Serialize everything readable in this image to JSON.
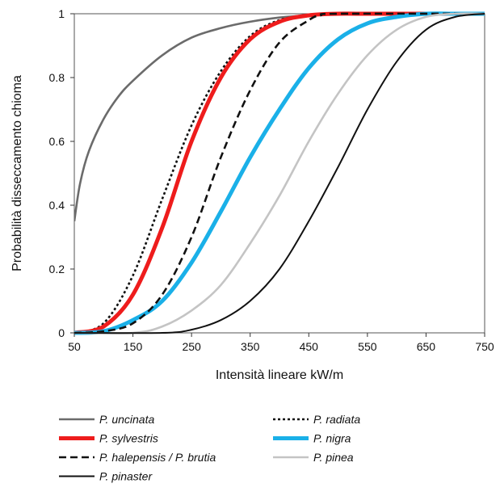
{
  "chart_data": {
    "type": "line",
    "title": "",
    "xlabel": "Intensità lineare kW/m",
    "ylabel": "Probabilità disseccamento chioma",
    "xlim": [
      50,
      750
    ],
    "ylim": [
      0,
      1
    ],
    "x_ticks": [
      "50",
      "150",
      "250",
      "350",
      "450",
      "550",
      "650",
      "750"
    ],
    "y_ticks": [
      "0",
      "0.2",
      "0.4",
      "0.6",
      "0.8",
      "1"
    ],
    "grid": false,
    "legend_position": "bottom",
    "series": [
      {
        "name": "P. uncinata",
        "color": "#6b6b6b",
        "dash": "solid",
        "width": "medium",
        "x": [
          50,
          60,
          75,
          100,
          125,
          150,
          200,
          250,
          300,
          350,
          400,
          450,
          500,
          600,
          750
        ],
        "y": [
          0.35,
          0.47,
          0.57,
          0.67,
          0.74,
          0.79,
          0.87,
          0.925,
          0.955,
          0.975,
          0.988,
          0.995,
          0.998,
          1.0,
          1.0
        ]
      },
      {
        "name": "P. radiata",
        "color": "#111111",
        "dash": "dotted",
        "width": "medium",
        "x": [
          50,
          100,
          150,
          200,
          250,
          300,
          350,
          400,
          450,
          470,
          500,
          550,
          750
        ],
        "y": [
          0.0,
          0.03,
          0.18,
          0.42,
          0.65,
          0.82,
          0.93,
          0.98,
          0.995,
          1.0,
          1.0,
          1.0,
          1.0
        ]
      },
      {
        "name": "P. sylvestris",
        "color": "#ee1c1c",
        "dash": "solid",
        "width": "thick",
        "x": [
          50,
          100,
          150,
          200,
          250,
          300,
          350,
          400,
          450,
          500,
          550,
          750
        ],
        "y": [
          0.0,
          0.02,
          0.12,
          0.33,
          0.6,
          0.8,
          0.92,
          0.975,
          0.995,
          1.0,
          1.0,
          1.0
        ]
      },
      {
        "name": "P. nigra",
        "color": "#1ab0e8",
        "dash": "solid",
        "width": "thick",
        "x": [
          50,
          100,
          150,
          200,
          250,
          300,
          350,
          400,
          450,
          500,
          550,
          600,
          650,
          700,
          750
        ],
        "y": [
          0.0,
          0.005,
          0.04,
          0.1,
          0.22,
          0.38,
          0.55,
          0.7,
          0.83,
          0.92,
          0.97,
          0.99,
          1.0,
          1.0,
          1.0
        ]
      },
      {
        "name": "P. halepensis / P. brutia",
        "color": "#111111",
        "dash": "dashed",
        "width": "medium",
        "x": [
          50,
          100,
          150,
          200,
          250,
          300,
          350,
          400,
          450,
          470,
          500,
          750
        ],
        "y": [
          0.0,
          0.005,
          0.03,
          0.12,
          0.3,
          0.55,
          0.76,
          0.91,
          0.98,
          0.995,
          1.0,
          1.0
        ]
      },
      {
        "name": "P. pinea",
        "color": "#c4c4c4",
        "dash": "solid",
        "width": "medium",
        "x": [
          50,
          150,
          200,
          250,
          300,
          350,
          400,
          450,
          500,
          550,
          600,
          650,
          700,
          750
        ],
        "y": [
          0.0,
          0.0,
          0.02,
          0.07,
          0.15,
          0.28,
          0.43,
          0.6,
          0.75,
          0.87,
          0.95,
          0.99,
          1.0,
          1.0
        ]
      },
      {
        "name": "P. pinaster",
        "color": "#111111",
        "dash": "solid",
        "width": "thin",
        "x": [
          50,
          200,
          250,
          300,
          350,
          400,
          450,
          500,
          550,
          600,
          650,
          700,
          750
        ],
        "y": [
          0.0,
          0.0,
          0.01,
          0.04,
          0.1,
          0.2,
          0.35,
          0.52,
          0.7,
          0.85,
          0.95,
          0.99,
          1.0
        ]
      }
    ],
    "legend_order": [
      "P. uncinata",
      "P. radiata",
      "P. sylvestris",
      "P. nigra",
      "P. halepensis / P. brutia",
      "P. pinea",
      "P. pinaster"
    ]
  }
}
